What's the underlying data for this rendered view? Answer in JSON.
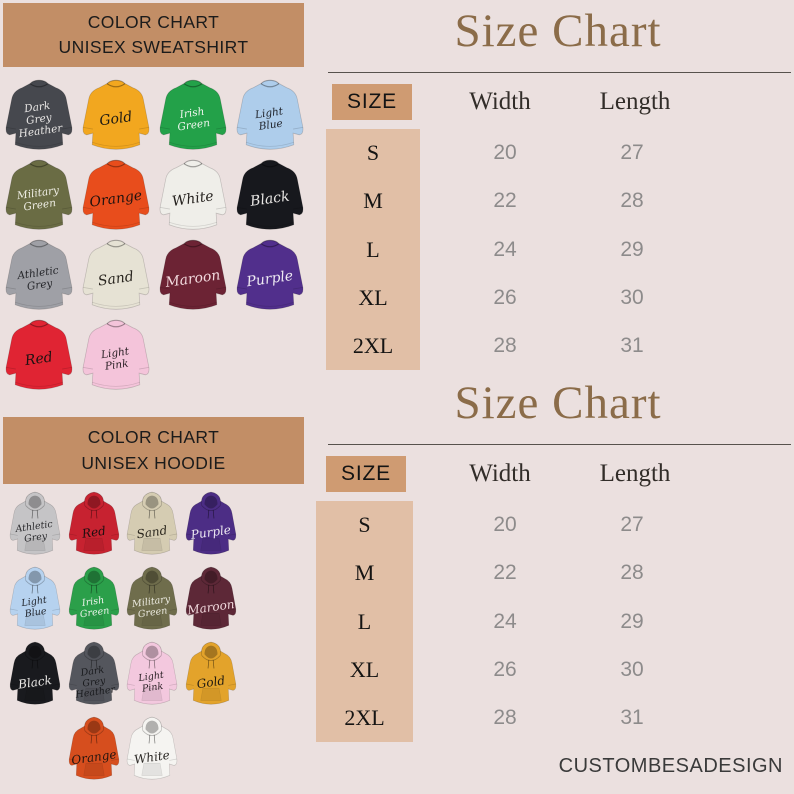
{
  "palette": {
    "background": "#ebe0df",
    "header_box_bg": "#c28e66",
    "size_header_bg": "#cf9b72",
    "size_rows_bg": "#e1bfa6",
    "title_brown": "#8b6c49",
    "value_grey": "#8d8b8b"
  },
  "sweatshirt_chart": {
    "title_lines": [
      "COLOR CHART",
      "UNISEX SWEATSHIRT"
    ],
    "items": [
      {
        "name": "Dark Grey Heather",
        "lines": [
          "Dark",
          "Grey",
          "Heather"
        ],
        "color": "#46484e",
        "text": "#e9e7e5",
        "row": 0,
        "col": 0
      },
      {
        "name": "Gold",
        "lines": [
          "Gold"
        ],
        "color": "#f2a71f",
        "text": "#1d1a14",
        "row": 0,
        "col": 1
      },
      {
        "name": "Irish Green",
        "lines": [
          "Irish",
          "Green"
        ],
        "color": "#23a149",
        "text": "#eff5ee",
        "row": 0,
        "col": 2
      },
      {
        "name": "Light Blue",
        "lines": [
          "Light",
          "Blue"
        ],
        "color": "#aecdeb",
        "text": "#21252d",
        "row": 0,
        "col": 3
      },
      {
        "name": "Military Green",
        "lines": [
          "Military",
          "Green"
        ],
        "color": "#6a6c44",
        "text": "#efeee5",
        "row": 1,
        "col": 0
      },
      {
        "name": "Orange",
        "lines": [
          "Orange"
        ],
        "color": "#e84d1c",
        "text": "#201310",
        "row": 1,
        "col": 1
      },
      {
        "name": "White",
        "lines": [
          "White"
        ],
        "color": "#efeee9",
        "text": "#26221f",
        "row": 1,
        "col": 2
      },
      {
        "name": "Black",
        "lines": [
          "Black"
        ],
        "color": "#17181d",
        "text": "#e9e7e5",
        "row": 1,
        "col": 3
      },
      {
        "name": "Athletic Grey",
        "lines": [
          "Athletic",
          "Grey"
        ],
        "color": "#9fa0a6",
        "text": "#26272b",
        "row": 2,
        "col": 0
      },
      {
        "name": "Sand",
        "lines": [
          "Sand"
        ],
        "color": "#e6e2d4",
        "text": "#2a2620",
        "row": 2,
        "col": 1
      },
      {
        "name": "Maroon",
        "lines": [
          "Maroon"
        ],
        "color": "#6c2334",
        "text": "#f2dade",
        "row": 2,
        "col": 2
      },
      {
        "name": "Purple",
        "lines": [
          "Purple"
        ],
        "color": "#512f8c",
        "text": "#eeeaf2",
        "row": 2,
        "col": 3
      },
      {
        "name": "Red",
        "lines": [
          "Red"
        ],
        "color": "#e02433",
        "text": "#1e1212",
        "row": 3,
        "col": 0
      },
      {
        "name": "Light Pink",
        "lines": [
          "Light",
          "Pink"
        ],
        "color": "#f4c4da",
        "text": "#2b2126",
        "row": 3,
        "col": 1
      }
    ]
  },
  "hoodie_chart": {
    "title_lines": [
      "COLOR CHART",
      "UNISEX HOODIE"
    ],
    "items": [
      {
        "name": "Athletic Grey",
        "lines": [
          "Athletic",
          "Grey"
        ],
        "color": "#c5c4c6",
        "text": "#2b2b2e",
        "row": 0,
        "col": 0
      },
      {
        "name": "Red",
        "lines": [
          "Red"
        ],
        "color": "#c72230",
        "text": "#1c0f10",
        "row": 0,
        "col": 1
      },
      {
        "name": "Sand",
        "lines": [
          "Sand"
        ],
        "color": "#d5ccb2",
        "text": "#2a261d",
        "row": 0,
        "col": 2
      },
      {
        "name": "Purple",
        "lines": [
          "Purple"
        ],
        "color": "#4c2d85",
        "text": "#ece8f0",
        "row": 0,
        "col": 3
      },
      {
        "name": "Light Blue",
        "lines": [
          "Light",
          "Blue"
        ],
        "color": "#b6d2ef",
        "text": "#22262e",
        "row": 1,
        "col": 0
      },
      {
        "name": "Irish Green",
        "lines": [
          "Irish",
          "Green"
        ],
        "color": "#2b9f4a",
        "text": "#edf3ec",
        "row": 1,
        "col": 1
      },
      {
        "name": "Military Green",
        "lines": [
          "Military",
          "Green"
        ],
        "color": "#6f6d4c",
        "text": "#edece2",
        "row": 1,
        "col": 2
      },
      {
        "name": "Maroon",
        "lines": [
          "Maroon"
        ],
        "color": "#5d2837",
        "text": "#f0d8dc",
        "row": 1,
        "col": 3
      },
      {
        "name": "Black",
        "lines": [
          "Black"
        ],
        "color": "#191a1e",
        "text": "#e8e6e4",
        "row": 2,
        "col": 0
      },
      {
        "name": "Dark Grey Heather",
        "lines": [
          "Dark",
          "Grey",
          "Heather"
        ],
        "color": "#54565d",
        "text": "#1a1b1e",
        "row": 2,
        "col": 1
      },
      {
        "name": "Light Pink",
        "lines": [
          "Light",
          "Pink"
        ],
        "color": "#f3c8de",
        "text": "#2b2126",
        "row": 2,
        "col": 2
      },
      {
        "name": "Gold",
        "lines": [
          "Gold"
        ],
        "color": "#e3a32b",
        "text": "#1f1a12",
        "row": 2,
        "col": 3
      },
      {
        "name": "Orange",
        "lines": [
          "Orange"
        ],
        "color": "#d64e1e",
        "text": "#231510",
        "row": 3,
        "col": 1
      },
      {
        "name": "White",
        "lines": [
          "White"
        ],
        "color": "#f5f4f1",
        "text": "#2a2724",
        "row": 3,
        "col": 2
      }
    ]
  },
  "size_charts": [
    {
      "title": "Size Chart",
      "size_header": "SIZE",
      "col_headers": [
        "Width",
        "Length"
      ],
      "rows": [
        {
          "size": "S",
          "width": "20",
          "length": "27"
        },
        {
          "size": "M",
          "width": "22",
          "length": "28"
        },
        {
          "size": "L",
          "width": "24",
          "length": "29"
        },
        {
          "size": "XL",
          "width": "26",
          "length": "30"
        },
        {
          "size": "2XL",
          "width": "28",
          "length": "31"
        }
      ]
    },
    {
      "title": "Size Chart",
      "size_header": "SIZE",
      "col_headers": [
        "Width",
        "Length"
      ],
      "rows": [
        {
          "size": "S",
          "width": "20",
          "length": "27"
        },
        {
          "size": "M",
          "width": "22",
          "length": "28"
        },
        {
          "size": "L",
          "width": "24",
          "length": "29"
        },
        {
          "size": "XL",
          "width": "26",
          "length": "30"
        },
        {
          "size": "2XL",
          "width": "28",
          "length": "31"
        }
      ]
    }
  ],
  "footer": {
    "brand": "CUSTOMBESADESIGN"
  }
}
